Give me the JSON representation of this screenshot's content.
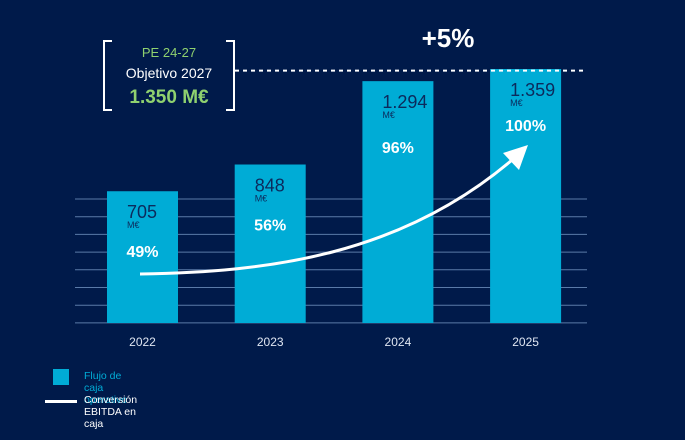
{
  "chart_data": {
    "type": "bar",
    "title": "",
    "xlabel": "",
    "ylabel": "",
    "ylim": [
      0,
      1730
    ],
    "grid": true,
    "categories": [
      "2022",
      "2023",
      "2024",
      "2025"
    ],
    "series": [
      {
        "name": "Flujo de caja operativo",
        "type": "bar",
        "unit": "M€",
        "values": [
          705,
          848,
          1294,
          1359
        ],
        "labels": [
          "705",
          "848",
          "1.294",
          "1.359"
        ]
      },
      {
        "name": "Conversión EBITDA en caja",
        "type": "line",
        "unit": "%",
        "values": [
          49,
          56,
          96,
          100
        ],
        "labels": [
          "49%",
          "56%",
          "96%",
          "100%"
        ]
      }
    ],
    "target": {
      "title": "PE 24-27",
      "subtitle": "Objetivo 2027",
      "value": 1350,
      "value_label": "1.350 M€"
    },
    "annotation": "+5%",
    "legend_position": "bottom-left"
  },
  "unit_label": "M€",
  "colors": {
    "background": "#001a4a",
    "bar": "#00acd6",
    "bar_text": "#0c2a5c",
    "accent_green": "#8fd16f",
    "white": "#ffffff",
    "grid": "#5a7aa8"
  }
}
